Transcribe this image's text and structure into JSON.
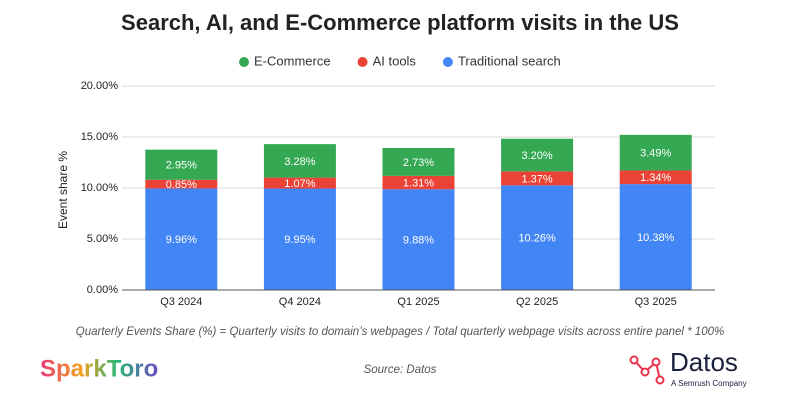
{
  "chart_data": {
    "type": "stacked-bar",
    "title": "Search, AI, and E-Commerce platform visits in the US",
    "y_label": "Event share %",
    "categories": [
      "Q3 2024",
      "Q4 2024",
      "Q1 2025",
      "Q2 2025",
      "Q3 2025"
    ],
    "series": [
      {
        "name": "E-Commerce",
        "color": "#34a853",
        "values": [
          2.95,
          3.28,
          2.73,
          3.2,
          3.49
        ],
        "value_labels": [
          "2.95%",
          "3.28%",
          "2.73%",
          "3.20%",
          "3.49%"
        ]
      },
      {
        "name": "AI tools",
        "color": "#ea4335",
        "values": [
          0.85,
          1.07,
          1.31,
          1.37,
          1.34
        ],
        "value_labels": [
          "0.85%",
          "1.07%",
          "1.31%",
          "1.37%",
          "1.34%"
        ]
      },
      {
        "name": "Traditional search",
        "color": "#4285f4",
        "values": [
          9.96,
          9.95,
          9.88,
          10.26,
          10.38
        ],
        "value_labels": [
          "9.96%",
          "9.95%",
          "9.88%",
          "10.26%",
          "10.38%"
        ]
      }
    ],
    "ylim": [
      0,
      20
    ],
    "yticks": [
      {
        "value": 0,
        "label": "0.00%"
      },
      {
        "value": 5,
        "label": "5.00%"
      },
      {
        "value": 10,
        "label": "10.00%"
      },
      {
        "value": 15,
        "label": "15.00%"
      },
      {
        "value": 20,
        "label": "20.00%"
      }
    ],
    "grid": true,
    "legend": "top",
    "note": "Quarterly Events Share (%) = Quarterly visits to domain’s webpages / Total quarterly webpage visits across entire panel * 100%",
    "source": "Source: Datos",
    "logo_left": "SparkToro",
    "logo_right": "Datos",
    "logo_right_sub": "A Semrush Company"
  }
}
